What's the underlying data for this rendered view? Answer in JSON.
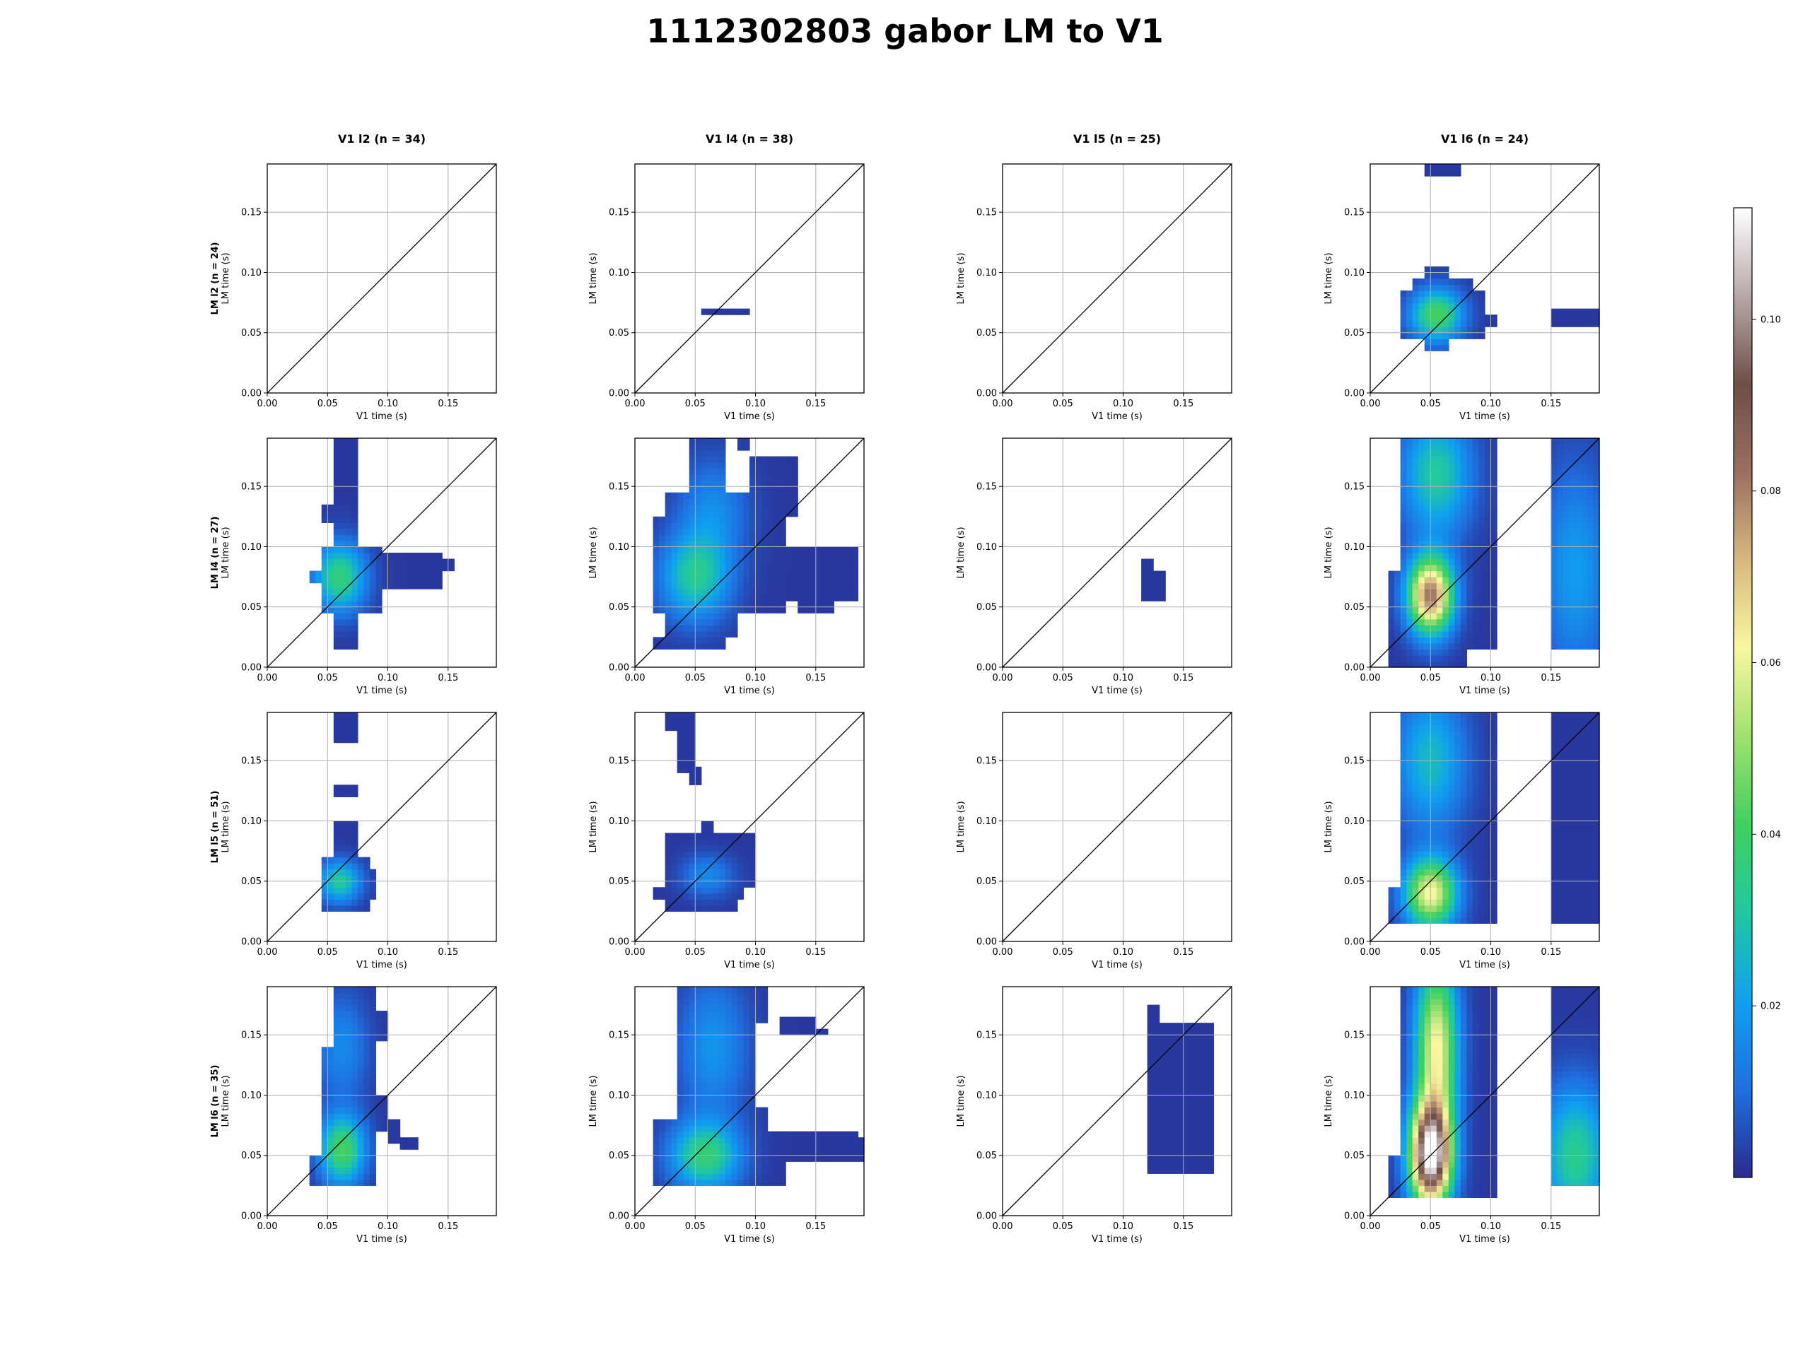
{
  "title": "1112302803 gabor LM to V1",
  "colors": {
    "colormap": [
      "#2b2b8f",
      "#1f6fe0",
      "#0fa0f0",
      "#20c8a0",
      "#40d060",
      "#a0e070",
      "#f8f8a0",
      "#d8b880",
      "#9a7060",
      "#6e4e48",
      "#b8a8a8",
      "#ffffff"
    ],
    "diagonal": "#000000",
    "grid": "#b0b0b0"
  },
  "columns": [
    {
      "label": "V1 l2 (n = 34)"
    },
    {
      "label": "V1 l4 (n = 38)"
    },
    {
      "label": "V1 l5 (n = 25)"
    },
    {
      "label": "V1 l6 (n = 24)"
    }
  ],
  "rows": [
    {
      "label": "LM l2 (n = 24)"
    },
    {
      "label": "LM l4 (n = 27)"
    },
    {
      "label": "LM l5 (n = 51)"
    },
    {
      "label": "LM l6 (n = 35)"
    }
  ],
  "colorbar": {
    "min": 0.0,
    "max": 0.113,
    "ticks": [
      0.02,
      0.04,
      0.06,
      0.08,
      0.1
    ],
    "tick_labels": [
      "0.02",
      "0.04",
      "0.06",
      "0.08",
      "0.10"
    ]
  },
  "chart_data": {
    "type": "heatmap",
    "xlabel": "V1 time (s)",
    "ylabel": "LM time (s)",
    "xlim": [
      0,
      0.19
    ],
    "ylim": [
      0,
      0.19
    ],
    "xticks": [
      "0.00",
      "0.05",
      "0.10",
      "0.15"
    ],
    "yticks": [
      "0.00",
      "0.05",
      "0.10",
      "0.15"
    ],
    "xtick_values": [
      0,
      0.05,
      0.1,
      0.15
    ],
    "ytick_values": [
      0,
      0.05,
      0.1,
      0.15
    ],
    "cell_size": 0.01,
    "panels": [
      {
        "row": 0,
        "col": 0,
        "blobs": [],
        "regions": []
      },
      {
        "row": 0,
        "col": 1,
        "blobs": [],
        "regions": [
          [
            0.055,
            0.095,
            0.063,
            0.072
          ]
        ]
      },
      {
        "row": 0,
        "col": 2,
        "blobs": [],
        "regions": []
      },
      {
        "row": 0,
        "col": 3,
        "blobs": [
          {
            "x": 0.055,
            "y": 0.065,
            "sx": 0.015,
            "sy": 0.015,
            "v": 0.04
          }
        ],
        "regions": [
          [
            0.045,
            0.075,
            0.18,
            0.19
          ],
          [
            0.045,
            0.065,
            0.035,
            0.045
          ],
          [
            0.025,
            0.095,
            0.045,
            0.085
          ],
          [
            0.035,
            0.085,
            0.085,
            0.095
          ],
          [
            0.045,
            0.065,
            0.095,
            0.105
          ],
          [
            0.085,
            0.105,
            0.055,
            0.065
          ],
          [
            0.15,
            0.19,
            0.055,
            0.07
          ]
        ]
      },
      {
        "row": 1,
        "col": 0,
        "blobs": [
          {
            "x": 0.06,
            "y": 0.075,
            "sx": 0.015,
            "sy": 0.02,
            "v": 0.035
          }
        ],
        "regions": [
          [
            0.055,
            0.075,
            0.015,
            0.19
          ],
          [
            0.045,
            0.095,
            0.045,
            0.1
          ],
          [
            0.035,
            0.045,
            0.07,
            0.08
          ],
          [
            0.045,
            0.055,
            0.12,
            0.135
          ],
          [
            0.095,
            0.145,
            0.065,
            0.095
          ],
          [
            0.145,
            0.155,
            0.08,
            0.09
          ]
        ]
      },
      {
        "row": 1,
        "col": 1,
        "blobs": [
          {
            "x": 0.05,
            "y": 0.075,
            "sx": 0.02,
            "sy": 0.025,
            "v": 0.03
          },
          {
            "x": 0.065,
            "y": 0.13,
            "sx": 0.02,
            "sy": 0.03,
            "v": 0.014
          }
        ],
        "regions": [
          [
            0.015,
            0.075,
            0.015,
            0.025
          ],
          [
            0.025,
            0.085,
            0.025,
            0.045
          ],
          [
            0.015,
            0.125,
            0.045,
            0.125
          ],
          [
            0.025,
            0.125,
            0.125,
            0.145
          ],
          [
            0.045,
            0.075,
            0.145,
            0.19
          ],
          [
            0.095,
            0.135,
            0.125,
            0.175
          ],
          [
            0.085,
            0.095,
            0.18,
            0.19
          ],
          [
            0.125,
            0.185,
            0.055,
            0.1
          ],
          [
            0.135,
            0.165,
            0.045,
            0.055
          ]
        ]
      },
      {
        "row": 1,
        "col": 2,
        "blobs": [],
        "regions": [
          [
            0.115,
            0.125,
            0.055,
            0.09
          ],
          [
            0.125,
            0.135,
            0.055,
            0.08
          ]
        ]
      },
      {
        "row": 1,
        "col": 3,
        "blobs": [
          {
            "x": 0.05,
            "y": 0.06,
            "sx": 0.013,
            "sy": 0.022,
            "v": 0.08
          },
          {
            "x": 0.055,
            "y": 0.16,
            "sx": 0.02,
            "sy": 0.035,
            "v": 0.03
          },
          {
            "x": 0.17,
            "y": 0.08,
            "sx": 0.02,
            "sy": 0.06,
            "v": 0.018
          }
        ],
        "regions": [
          [
            0.025,
            0.105,
            0.015,
            0.19
          ],
          [
            0.015,
            0.025,
            0.0,
            0.08
          ],
          [
            0.025,
            0.08,
            0.0,
            0.015
          ],
          [
            0.15,
            0.19,
            0.015,
            0.17
          ],
          [
            0.15,
            0.19,
            0.17,
            0.19
          ]
        ]
      },
      {
        "row": 2,
        "col": 0,
        "blobs": [
          {
            "x": 0.06,
            "y": 0.05,
            "sx": 0.012,
            "sy": 0.012,
            "v": 0.03
          }
        ],
        "regions": [
          [
            0.055,
            0.075,
            0.165,
            0.19
          ],
          [
            0.055,
            0.075,
            0.12,
            0.13
          ],
          [
            0.055,
            0.075,
            0.03,
            0.1
          ],
          [
            0.045,
            0.085,
            0.025,
            0.07
          ],
          [
            0.075,
            0.09,
            0.035,
            0.06
          ]
        ]
      },
      {
        "row": 2,
        "col": 1,
        "blobs": [
          {
            "x": 0.06,
            "y": 0.055,
            "sx": 0.015,
            "sy": 0.012,
            "v": 0.014
          }
        ],
        "regions": [
          [
            0.025,
            0.05,
            0.175,
            0.19
          ],
          [
            0.035,
            0.05,
            0.14,
            0.175
          ],
          [
            0.045,
            0.055,
            0.13,
            0.145
          ],
          [
            0.055,
            0.065,
            0.075,
            0.1
          ],
          [
            0.025,
            0.1,
            0.045,
            0.09
          ],
          [
            0.015,
            0.09,
            0.035,
            0.045
          ],
          [
            0.025,
            0.085,
            0.025,
            0.035
          ]
        ]
      },
      {
        "row": 2,
        "col": 2,
        "blobs": [],
        "regions": []
      },
      {
        "row": 2,
        "col": 3,
        "blobs": [
          {
            "x": 0.05,
            "y": 0.04,
            "sx": 0.015,
            "sy": 0.02,
            "v": 0.06
          },
          {
            "x": 0.05,
            "y": 0.15,
            "sx": 0.02,
            "sy": 0.04,
            "v": 0.025
          }
        ],
        "regions": [
          [
            0.025,
            0.105,
            0.015,
            0.19
          ],
          [
            0.015,
            0.025,
            0.015,
            0.045
          ],
          [
            0.025,
            0.035,
            0.14,
            0.16
          ],
          [
            0.15,
            0.19,
            0.015,
            0.19
          ],
          [
            0.15,
            0.17,
            0.045,
            0.06
          ]
        ]
      },
      {
        "row": 3,
        "col": 0,
        "blobs": [
          {
            "x": 0.062,
            "y": 0.055,
            "sx": 0.013,
            "sy": 0.02,
            "v": 0.04
          },
          {
            "x": 0.062,
            "y": 0.14,
            "sx": 0.015,
            "sy": 0.03,
            "v": 0.014
          }
        ],
        "regions": [
          [
            0.045,
            0.09,
            0.025,
            0.14
          ],
          [
            0.035,
            0.045,
            0.025,
            0.05
          ],
          [
            0.055,
            0.09,
            0.14,
            0.19
          ],
          [
            0.09,
            0.1,
            0.145,
            0.17
          ],
          [
            0.09,
            0.1,
            0.07,
            0.1
          ],
          [
            0.1,
            0.11,
            0.06,
            0.08
          ],
          [
            0.11,
            0.125,
            0.055,
            0.065
          ]
        ]
      },
      {
        "row": 3,
        "col": 1,
        "blobs": [
          {
            "x": 0.058,
            "y": 0.05,
            "sx": 0.02,
            "sy": 0.02,
            "v": 0.035
          },
          {
            "x": 0.065,
            "y": 0.14,
            "sx": 0.02,
            "sy": 0.04,
            "v": 0.016
          }
        ],
        "regions": [
          [
            0.035,
            0.1,
            0.025,
            0.19
          ],
          [
            0.015,
            0.035,
            0.025,
            0.08
          ],
          [
            0.1,
            0.125,
            0.025,
            0.07
          ],
          [
            0.1,
            0.11,
            0.07,
            0.09
          ],
          [
            0.125,
            0.185,
            0.045,
            0.07
          ],
          [
            0.1,
            0.11,
            0.16,
            0.19
          ],
          [
            0.12,
            0.15,
            0.15,
            0.165
          ],
          [
            0.15,
            0.16,
            0.15,
            0.155
          ],
          [
            0.185,
            0.19,
            0.045,
            0.065
          ]
        ]
      },
      {
        "row": 3,
        "col": 2,
        "blobs": [],
        "regions": [
          [
            0.12,
            0.13,
            0.035,
            0.175
          ],
          [
            0.12,
            0.175,
            0.035,
            0.155
          ],
          [
            0.13,
            0.175,
            0.155,
            0.16
          ]
        ]
      },
      {
        "row": 3,
        "col": 3,
        "blobs": [
          {
            "x": 0.05,
            "y": 0.05,
            "sx": 0.012,
            "sy": 0.03,
            "v": 0.11
          },
          {
            "x": 0.055,
            "y": 0.14,
            "sx": 0.012,
            "sy": 0.05,
            "v": 0.06
          },
          {
            "x": 0.17,
            "y": 0.05,
            "sx": 0.02,
            "sy": 0.04,
            "v": 0.032
          }
        ],
        "regions": [
          [
            0.025,
            0.105,
            0.015,
            0.19
          ],
          [
            0.015,
            0.025,
            0.015,
            0.05
          ],
          [
            0.15,
            0.19,
            0.025,
            0.19
          ]
        ]
      }
    ]
  }
}
